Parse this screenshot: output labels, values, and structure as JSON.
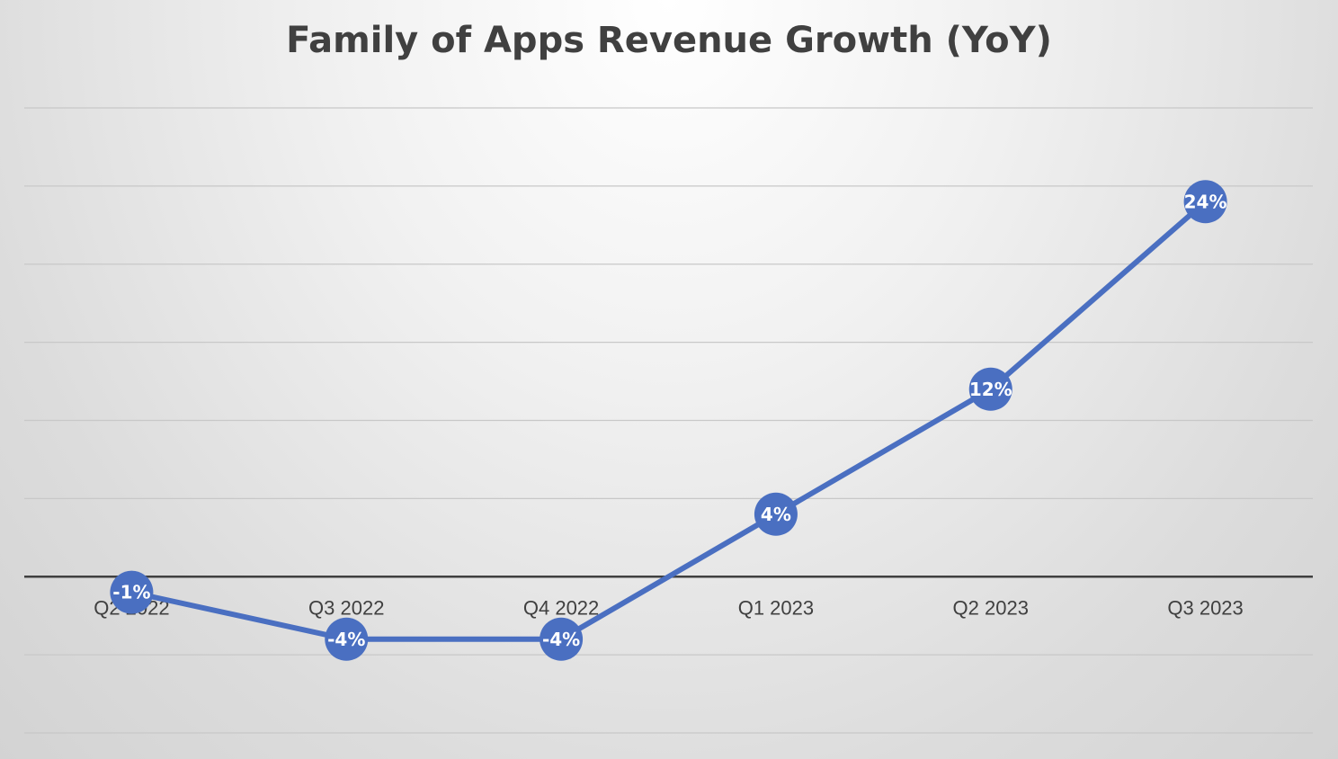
{
  "chart_data": {
    "type": "line",
    "title": "Family of Apps Revenue Growth (YoY)",
    "categories": [
      "Q2 2022",
      "Q3 2022",
      "Q4 2022",
      "Q1 2023",
      "Q2 2023",
      "Q3 2023"
    ],
    "series": [
      {
        "name": "Family of Apps Revenue Growth (YoY)",
        "values": [
          -1,
          -4,
          -4,
          4,
          12,
          24
        ],
        "labels": [
          "-1%",
          "-4%",
          "-4%",
          "4%",
          "12%",
          "24%"
        ],
        "color": "#4a6fc1"
      }
    ],
    "xlabel": "",
    "ylabel": "",
    "ylim": [
      -10,
      30
    ],
    "gridlines": true,
    "legend": "none",
    "colors": {
      "line": "#4a6fc1",
      "marker": "#4a6fc1",
      "gridline": "#c8c8c8",
      "zero_axis": "#404040",
      "title": "#404040"
    }
  }
}
